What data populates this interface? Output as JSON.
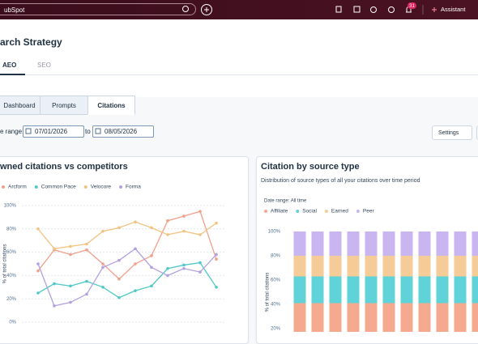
{
  "topbar": {
    "search": "ubSpot",
    "badge": "31",
    "assistant": "Assistant"
  },
  "page": {
    "title": "arch Strategy",
    "tabs": [
      "AEO",
      "SEO"
    ],
    "subtabs": [
      "Dashboard",
      "Prompts",
      "Citations"
    ],
    "date_label": "e range:",
    "date_from": "07/01/2026",
    "date_to_label": "to",
    "date_to": "08/05/2026",
    "settings": "Settings"
  },
  "chart_data": [
    {
      "type": "line",
      "title": "wned citations vs competitors",
      "ylabel": "% of total citations",
      "categories": [
        null,
        null,
        null,
        null,
        null,
        null,
        null,
        null,
        null,
        null,
        null,
        null
      ],
      "series": [
        {
          "name": "Arcform",
          "color": "#f0a08c",
          "values": [
            44,
            62,
            58,
            62,
            50,
            37,
            50,
            57,
            87,
            91,
            95,
            54
          ]
        },
        {
          "name": "Common Pace",
          "color": "#4ec9c5",
          "values": [
            25,
            33,
            31,
            35,
            30,
            21,
            27,
            31,
            46,
            49,
            51,
            30
          ]
        },
        {
          "name": "Velocore",
          "color": "#f2c37f",
          "values": [
            80,
            63,
            65,
            67,
            78,
            81,
            86,
            81,
            75,
            78,
            75,
            85
          ]
        },
        {
          "name": "Forma",
          "color": "#b3a0e0",
          "values": [
            50,
            14,
            17,
            24,
            47,
            53,
            63,
            47,
            40,
            46,
            43,
            58
          ]
        }
      ],
      "ylim": [
        0,
        100
      ],
      "yticks": [
        {
          "value": 0,
          "label": "0%"
        },
        {
          "value": 20,
          "label": "20%"
        },
        {
          "value": 40,
          "label": "40%"
        },
        {
          "value": 60,
          "label": "60%"
        },
        {
          "value": 80,
          "label": "80%"
        },
        {
          "value": 100,
          "label": "100%"
        }
      ],
      "grid": true
    },
    {
      "type": "stacked_bar",
      "title": "Citation by source type",
      "subtitle": "Distribution of source types of all your citations over time period",
      "note": "Date range: All time",
      "ylabel": "% of total citations",
      "categories": [
        null,
        null,
        null,
        null,
        null,
        null,
        null,
        null,
        null,
        null,
        null
      ],
      "series": [
        {
          "name": "Affiliate",
          "color": "#f5a98e",
          "values": [
            41,
            41,
            41,
            41,
            41,
            41,
            41,
            41,
            41,
            41,
            41
          ]
        },
        {
          "name": "Social",
          "color": "#5fd3d8",
          "values": [
            22,
            22,
            22,
            22,
            22,
            22,
            22,
            22,
            22,
            22,
            22
          ]
        },
        {
          "name": "Earned",
          "color": "#f5cb97",
          "values": [
            17,
            17,
            17,
            17,
            17,
            17,
            17,
            17,
            17,
            17,
            17
          ]
        },
        {
          "name": "Peer",
          "color": "#c9b5ef",
          "values": [
            20,
            20,
            20,
            20,
            20,
            20,
            20,
            20,
            20,
            20,
            20
          ]
        }
      ],
      "ylim": [
        0,
        100
      ],
      "yticks": [
        {
          "value": 20,
          "label": "20%"
        },
        {
          "value": 40,
          "label": "40%"
        },
        {
          "value": 60,
          "label": "60%"
        },
        {
          "value": 80,
          "label": "80%"
        },
        {
          "value": 100,
          "label": "100%"
        }
      ],
      "grid": false
    }
  ]
}
